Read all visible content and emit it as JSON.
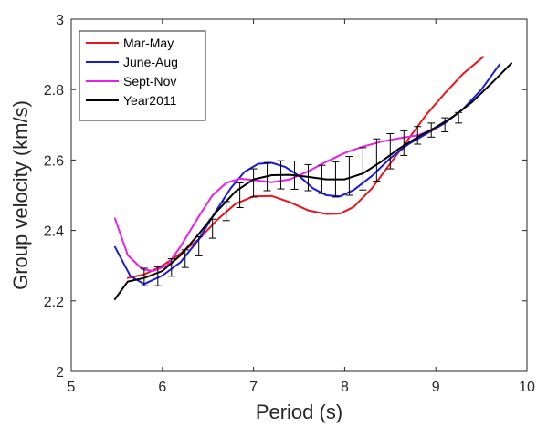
{
  "chart_data": {
    "type": "line",
    "xlabel": "Period (s)",
    "ylabel": "Group velocity (km/s)",
    "xlim": [
      5,
      10
    ],
    "ylim": [
      2,
      3
    ],
    "xticks": [
      "5",
      "6",
      "7",
      "8",
      "9",
      "10"
    ],
    "yticks": [
      "2",
      "2.2",
      "2.4",
      "2.6",
      "2.8",
      "3"
    ],
    "grid": false,
    "legend_position": "top-left",
    "series": [
      {
        "name": "Mar-May",
        "color": "#e8151b",
        "x": [
          5.62,
          5.8,
          6.0,
          6.2,
          6.4,
          6.6,
          6.8,
          7.0,
          7.2,
          7.4,
          7.6,
          7.8,
          7.95,
          8.1,
          8.3,
          8.5,
          8.7,
          8.9,
          9.1,
          9.3,
          9.52
        ],
        "y": [
          2.265,
          2.275,
          2.3,
          2.335,
          2.375,
          2.43,
          2.475,
          2.497,
          2.498,
          2.48,
          2.457,
          2.447,
          2.448,
          2.467,
          2.52,
          2.59,
          2.66,
          2.73,
          2.79,
          2.845,
          2.893
        ]
      },
      {
        "name": "June-Aug",
        "color": "#1a1adb",
        "x": [
          5.48,
          5.65,
          5.8,
          6.0,
          6.2,
          6.4,
          6.6,
          6.75,
          6.9,
          7.05,
          7.2,
          7.35,
          7.5,
          7.65,
          7.8,
          7.95,
          8.1,
          8.3,
          8.5,
          8.7,
          8.9,
          9.1,
          9.3,
          9.5,
          9.7
        ],
        "y": [
          2.353,
          2.27,
          2.248,
          2.272,
          2.31,
          2.375,
          2.46,
          2.52,
          2.566,
          2.589,
          2.592,
          2.58,
          2.555,
          2.52,
          2.5,
          2.497,
          2.515,
          2.555,
          2.605,
          2.645,
          2.675,
          2.705,
          2.745,
          2.8,
          2.872
        ]
      },
      {
        "name": "Sept-Nov",
        "color": "#e81fe8",
        "x": [
          5.48,
          5.62,
          5.78,
          5.9,
          6.05,
          6.2,
          6.4,
          6.55,
          6.7,
          6.85,
          7.0,
          7.2,
          7.4,
          7.6,
          7.8,
          8.0,
          8.2,
          8.4,
          8.6,
          8.8,
          9.0
        ],
        "y": [
          2.434,
          2.33,
          2.29,
          2.285,
          2.3,
          2.355,
          2.44,
          2.5,
          2.535,
          2.547,
          2.543,
          2.537,
          2.545,
          2.568,
          2.595,
          2.62,
          2.638,
          2.652,
          2.662,
          2.67,
          2.69
        ]
      },
      {
        "name": "Year2011",
        "color": "#000000",
        "x": [
          5.48,
          5.62,
          5.8,
          6.0,
          6.2,
          6.4,
          6.6,
          6.8,
          7.0,
          7.2,
          7.4,
          7.6,
          7.8,
          8.0,
          8.2,
          8.4,
          8.6,
          8.8,
          9.0,
          9.2,
          9.4,
          9.6,
          9.83
        ],
        "y": [
          2.205,
          2.255,
          2.265,
          2.285,
          2.33,
          2.39,
          2.455,
          2.51,
          2.545,
          2.557,
          2.558,
          2.552,
          2.545,
          2.545,
          2.562,
          2.595,
          2.633,
          2.665,
          2.693,
          2.725,
          2.765,
          2.815,
          2.875
        ]
      }
    ],
    "error_bars": {
      "series": "Year2011",
      "x": [
        5.8,
        5.95,
        6.1,
        6.25,
        6.4,
        6.55,
        6.7,
        6.85,
        7.0,
        7.15,
        7.3,
        7.45,
        7.6,
        7.75,
        7.9,
        8.05,
        8.2,
        8.35,
        8.5,
        8.65,
        8.8,
        8.95,
        9.1,
        9.25
      ],
      "y": [
        2.268,
        2.27,
        2.295,
        2.32,
        2.355,
        2.405,
        2.455,
        2.5,
        2.535,
        2.553,
        2.558,
        2.557,
        2.55,
        2.545,
        2.545,
        2.555,
        2.575,
        2.6,
        2.625,
        2.648,
        2.67,
        2.685,
        2.7,
        2.72
      ],
      "err": [
        0.025,
        0.027,
        0.025,
        0.025,
        0.027,
        0.027,
        0.027,
        0.035,
        0.04,
        0.04,
        0.04,
        0.04,
        0.037,
        0.04,
        0.05,
        0.055,
        0.06,
        0.06,
        0.05,
        0.035,
        0.025,
        0.02,
        0.02,
        0.015
      ]
    }
  }
}
